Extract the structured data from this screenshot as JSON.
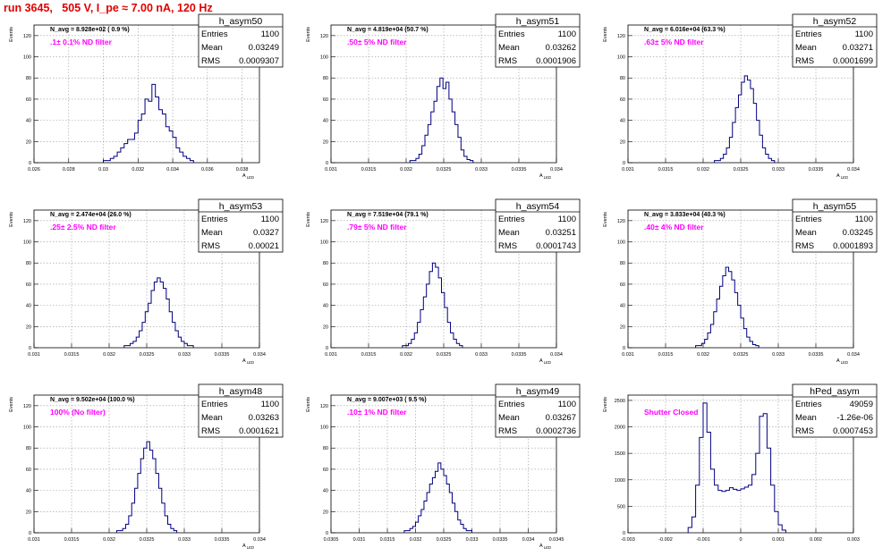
{
  "page_title": "run 3645,   505 V, I_pe ≈ 7.00 nA, 120 Hz",
  "colors": {
    "hist": "#000080",
    "filter_label": "#ff00ff",
    "title": "#e00000",
    "grid": "#999999"
  },
  "chart_data": [
    {
      "type": "histogram",
      "name": "h_asym50",
      "ylabel": "Events",
      "xlabel": "A_LED",
      "navg": "N_avg = 8.928e+02 ( 0.9 %)",
      "filter": ".1± 0.1% ND filter",
      "stats": {
        "entries": "1100",
        "mean": "0.03249",
        "rms": "0.0009307"
      },
      "xlim": [
        0.026,
        0.039
      ],
      "ylim": [
        0,
        130
      ],
      "xticks": [
        0.026,
        0.028,
        0.03,
        0.032,
        0.034,
        0.036,
        0.038
      ],
      "xticklabels": [
        "0.026",
        "0.028",
        "0.03",
        "0.032",
        "0.034",
        "0.036",
        "0.038"
      ],
      "yticks": [
        0,
        20,
        40,
        60,
        80,
        100,
        120
      ],
      "x_start": 0.03,
      "bin_width": 0.0002,
      "counts": [
        2,
        2,
        4,
        6,
        10,
        14,
        18,
        22,
        22,
        28,
        40,
        46,
        60,
        58,
        74,
        62,
        50,
        46,
        34,
        30,
        24,
        14,
        10,
        6,
        4,
        2
      ]
    },
    {
      "type": "histogram",
      "name": "h_asym51",
      "ylabel": "Events",
      "xlabel": "A_LED",
      "navg": "N_avg = 4.819e+04 (50.7 %)",
      "filter": ".50± 5% ND filter",
      "stats": {
        "entries": "1100",
        "mean": "0.03262",
        "rms": "0.0001906"
      },
      "xlim": [
        0.031,
        0.034
      ],
      "ylim": [
        0,
        130
      ],
      "xticks": [
        0.031,
        0.0315,
        0.032,
        0.0325,
        0.033,
        0.0335,
        0.034
      ],
      "xticklabels": [
        "0.031",
        "0.0315",
        "0.032",
        "0.0325",
        "0.033",
        "0.0335",
        "0.034"
      ],
      "yticks": [
        0,
        20,
        40,
        60,
        80,
        100,
        120
      ],
      "x_start": 0.03205,
      "bin_width": 4e-05,
      "counts": [
        2,
        2,
        4,
        8,
        16,
        26,
        36,
        48,
        58,
        72,
        80,
        70,
        76,
        60,
        48,
        36,
        24,
        12,
        6,
        3,
        2
      ]
    },
    {
      "type": "histogram",
      "name": "h_asym52",
      "ylabel": "Events",
      "xlabel": "A_LED",
      "navg": "N_avg = 6.016e+04 (63.3 %)",
      "filter": ".63± 5% ND filter",
      "stats": {
        "entries": "1100",
        "mean": "0.03271",
        "rms": "0.0001699"
      },
      "xlim": [
        0.031,
        0.034
      ],
      "ylim": [
        0,
        130
      ],
      "xticks": [
        0.031,
        0.0315,
        0.032,
        0.0325,
        0.033,
        0.0335,
        0.034
      ],
      "xticklabels": [
        "0.031",
        "0.0315",
        "0.032",
        "0.0325",
        "0.033",
        "0.0335",
        "0.034"
      ],
      "yticks": [
        0,
        20,
        40,
        60,
        80,
        100,
        120
      ],
      "x_start": 0.03215,
      "bin_width": 4e-05,
      "counts": [
        2,
        2,
        4,
        8,
        14,
        24,
        38,
        52,
        64,
        76,
        82,
        78,
        70,
        56,
        40,
        26,
        14,
        8,
        4,
        2
      ]
    },
    {
      "type": "histogram",
      "name": "h_asym53",
      "ylabel": "Events",
      "xlabel": "A_LED",
      "navg": "N_avg = 2.474e+04 (26.0 %)",
      "filter": ".25± 2.5% ND filter",
      "stats": {
        "entries": "1100",
        "mean": "0.0327",
        "rms": "0.00021"
      },
      "xlim": [
        0.031,
        0.034
      ],
      "ylim": [
        0,
        130
      ],
      "xticks": [
        0.031,
        0.0315,
        0.032,
        0.0325,
        0.033,
        0.0335,
        0.034
      ],
      "xticklabels": [
        "0.031",
        "0.0315",
        "0.032",
        "0.0325",
        "0.033",
        "0.0335",
        "0.034"
      ],
      "yticks": [
        0,
        20,
        40,
        60,
        80,
        100,
        120
      ],
      "x_start": 0.0322,
      "bin_width": 4e-05,
      "counts": [
        2,
        2,
        4,
        6,
        10,
        16,
        24,
        34,
        42,
        54,
        62,
        66,
        62,
        56,
        46,
        34,
        24,
        16,
        10,
        6,
        4,
        2,
        2
      ]
    },
    {
      "type": "histogram",
      "name": "h_asym54",
      "ylabel": "Events",
      "xlabel": "A_LED",
      "navg": "N_avg = 7.519e+04 (79.1 %)",
      "filter": ".79± 5% ND filter",
      "stats": {
        "entries": "1100",
        "mean": "0.03251",
        "rms": "0.0001743"
      },
      "xlim": [
        0.031,
        0.034
      ],
      "ylim": [
        0,
        130
      ],
      "xticks": [
        0.031,
        0.0315,
        0.032,
        0.0325,
        0.033,
        0.0335,
        0.034
      ],
      "xticklabels": [
        "0.031",
        "0.0315",
        "0.032",
        "0.0325",
        "0.033",
        "0.0335",
        "0.034"
      ],
      "yticks": [
        0,
        20,
        40,
        60,
        80,
        100,
        120
      ],
      "x_start": 0.03195,
      "bin_width": 4e-05,
      "counts": [
        2,
        2,
        4,
        8,
        14,
        24,
        36,
        48,
        60,
        72,
        80,
        76,
        66,
        52,
        38,
        24,
        14,
        8,
        4,
        2
      ]
    },
    {
      "type": "histogram",
      "name": "h_asym55",
      "ylabel": "Events",
      "xlabel": "A_LED",
      "navg": "N_avg = 3.833e+04 (40.3 %)",
      "filter": ".40± 4% ND filter",
      "stats": {
        "entries": "1100",
        "mean": "0.03245",
        "rms": "0.0001893"
      },
      "xlim": [
        0.031,
        0.034
      ],
      "ylim": [
        0,
        130
      ],
      "xticks": [
        0.031,
        0.0315,
        0.032,
        0.0325,
        0.033,
        0.0335,
        0.034
      ],
      "xticklabels": [
        "0.031",
        "0.0315",
        "0.032",
        "0.0325",
        "0.033",
        "0.0335",
        "0.034"
      ],
      "yticks": [
        0,
        20,
        40,
        60,
        80,
        100,
        120
      ],
      "x_start": 0.0319,
      "bin_width": 4e-05,
      "counts": [
        2,
        2,
        4,
        8,
        14,
        22,
        34,
        46,
        58,
        68,
        76,
        72,
        64,
        52,
        40,
        28,
        18,
        10,
        6,
        3,
        2
      ]
    },
    {
      "type": "histogram",
      "name": "h_asym48",
      "ylabel": "Events",
      "xlabel": "A_LED",
      "navg": "N_avg = 9.502e+04 (100.0 %)",
      "filter": "100% (No filter)",
      "stats": {
        "entries": "1100",
        "mean": "0.03263",
        "rms": "0.0001621"
      },
      "xlim": [
        0.031,
        0.034
      ],
      "ylim": [
        0,
        130
      ],
      "xticks": [
        0.031,
        0.0315,
        0.032,
        0.0325,
        0.033,
        0.0335,
        0.034
      ],
      "xticklabels": [
        "0.031",
        "0.0315",
        "0.032",
        "0.0325",
        "0.033",
        "0.0335",
        "0.034"
      ],
      "yticks": [
        0,
        20,
        40,
        60,
        80,
        100,
        120
      ],
      "x_start": 0.0321,
      "bin_width": 4e-05,
      "counts": [
        2,
        2,
        4,
        8,
        16,
        28,
        42,
        56,
        70,
        80,
        86,
        78,
        70,
        56,
        42,
        28,
        16,
        8,
        4,
        2
      ]
    },
    {
      "type": "histogram",
      "name": "h_asym49",
      "ylabel": "Events",
      "xlabel": "A_LED",
      "navg": "N_avg = 9.007e+03 ( 9.5 %)",
      "filter": ".10± 1% ND filter",
      "stats": {
        "entries": "1100",
        "mean": "0.03267",
        "rms": "0.0002736"
      },
      "xlim": [
        0.0305,
        0.0345
      ],
      "ylim": [
        0,
        130
      ],
      "xticks": [
        0.0305,
        0.031,
        0.0315,
        0.032,
        0.0325,
        0.033,
        0.0335,
        0.034,
        0.0345
      ],
      "xticklabels": [
        "0.0305",
        "0.031",
        "0.0315",
        "0.032",
        "0.0325",
        "0.033",
        "0.0335",
        "0.034",
        "0.0345"
      ],
      "yticks": [
        0,
        20,
        40,
        60,
        80,
        100,
        120
      ],
      "x_start": 0.0318,
      "bin_width": 5e-05,
      "counts": [
        2,
        2,
        4,
        6,
        10,
        16,
        22,
        30,
        38,
        46,
        52,
        58,
        66,
        60,
        54,
        46,
        38,
        28,
        20,
        12,
        8,
        4,
        2,
        2
      ]
    },
    {
      "type": "histogram",
      "name": "hPed_asym",
      "ylabel": "Events",
      "xlabel": "",
      "navg": "",
      "filter": "Shutter Closed",
      "stats": {
        "entries": "49059",
        "mean": "-1.26e-06",
        "rms": "0.0007453"
      },
      "xlim": [
        -0.003,
        0.003
      ],
      "ylim": [
        0,
        2600
      ],
      "xticks": [
        -0.003,
        -0.002,
        -0.001,
        0,
        0.001,
        0.002,
        0.003
      ],
      "xticklabels": [
        "-0.003",
        "-0.002",
        "-0.001",
        "0",
        "0.001",
        "0.002",
        "0.003"
      ],
      "yticks": [
        0,
        500,
        1000,
        1500,
        2000,
        2500
      ],
      "x_start": -0.0014,
      "bin_width": 0.0001,
      "counts": [
        100,
        300,
        900,
        1800,
        2450,
        1900,
        1200,
        900,
        800,
        780,
        800,
        850,
        820,
        800,
        830,
        860,
        900,
        1100,
        1500,
        2200,
        2250,
        1600,
        900,
        400,
        150,
        50
      ]
    }
  ]
}
